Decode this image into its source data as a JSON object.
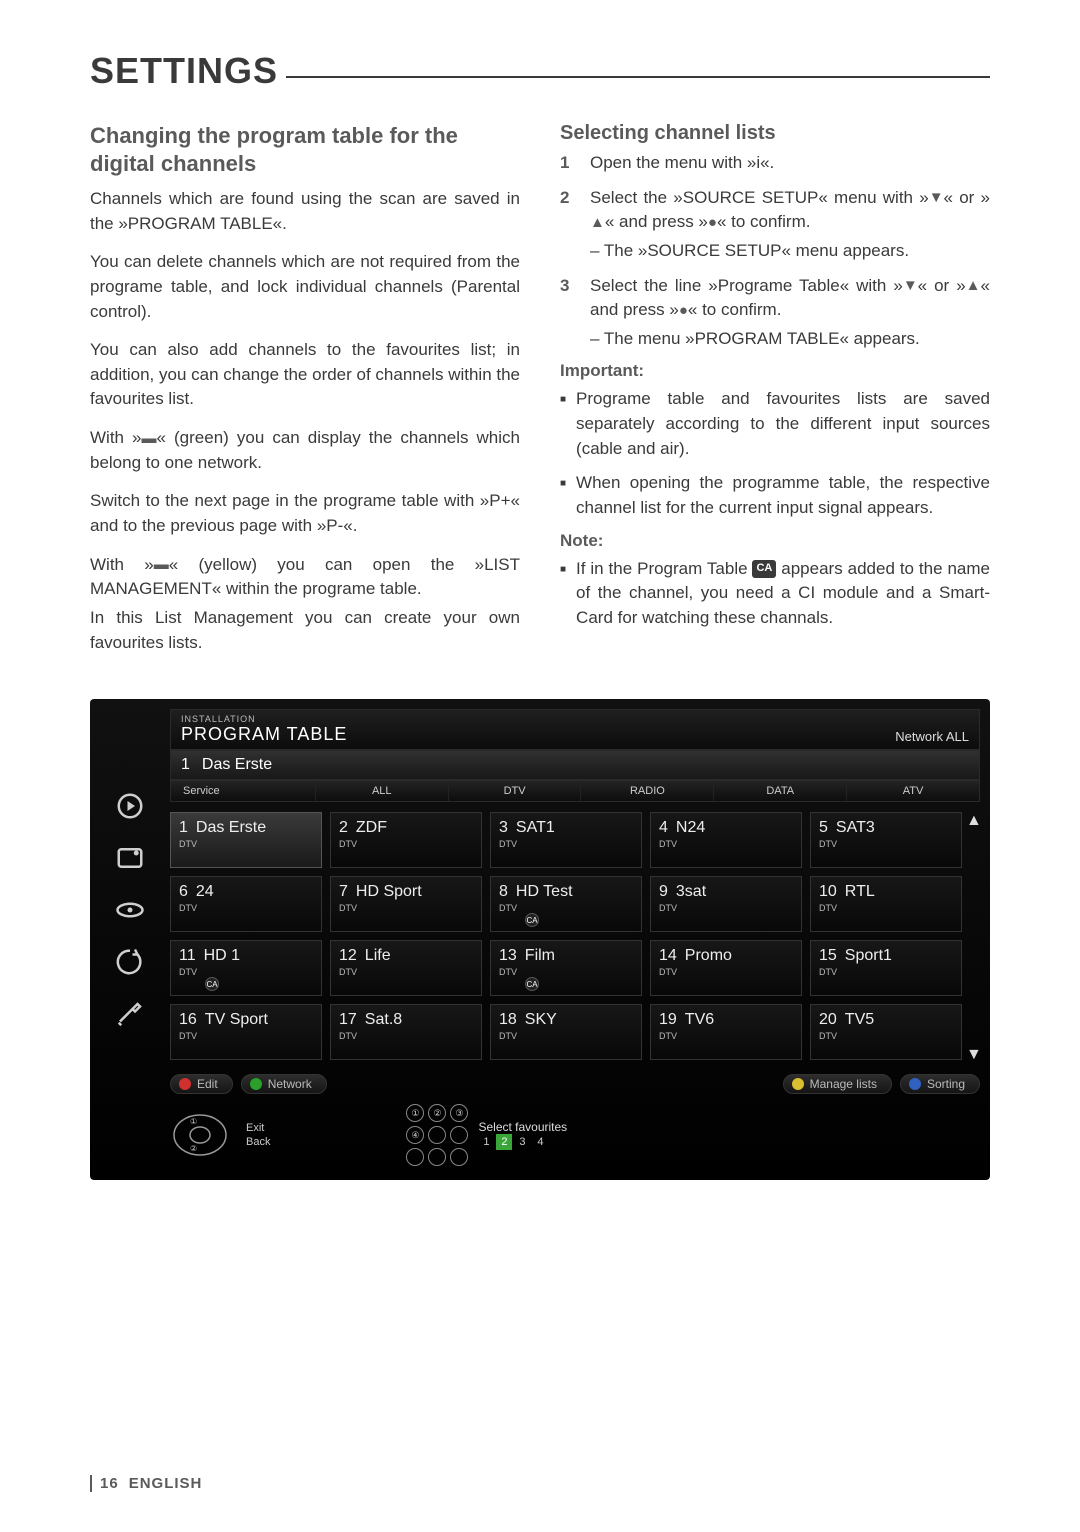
{
  "page": {
    "title": "SETTINGS",
    "footer_page": "16",
    "footer_lang": "ENGLISH"
  },
  "left": {
    "h2": "Changing the program table for the digital channels",
    "p1": "Channels which are found using the scan are saved in the »PROGRAM TABLE«.",
    "p2": "You can delete channels which are not required from the programe table, and lock individual channels (Parental control).",
    "p3": "You can also add channels to the favourites list; in addition, you can change the order of channels within the favourites list.",
    "p4a": "With »",
    "p4b": "« (green) you can display the channels which belong to one network.",
    "p5": "Switch to the next page in the programe table with »P+« and to the previous page with »P-«.",
    "p6a": "With »",
    "p6b": "« (yellow) you can open the »LIST MANAGEMENT« within the programe table.",
    "p7": "In this List Management you can create your own favourites lists."
  },
  "right": {
    "h3": "Selecting channel lists",
    "step1": "Open the menu with »i«.",
    "step2a": "Select the »SOURCE SETUP« menu with »",
    "step2b": "« or »",
    "step2c": "« and press »",
    "step2d": "« to confirm.",
    "sub2": "The »SOURCE SETUP« menu appears.",
    "step3a": "Select the line »Programe Table« with »",
    "step3b": "« or »",
    "step3c": "« and press »",
    "step3d": "« to confirm.",
    "sub3": "The menu »PROGRAM TABLE« appears.",
    "imp_label": "Important:",
    "imp1": "Programe table and favourites lists are saved separately according to the different input sources (cable and air).",
    "imp2": "When opening the programme table, the respective channel list for the current input signal appears.",
    "note_label": "Note:",
    "note1a": "If in the Program Table ",
    "note_badge": "CA",
    "note1b": " appears added to the name of the channel, you need a CI module and a Smart-Card for watching these channals."
  },
  "tv": {
    "inst": "INSTALLATION",
    "title": "PROGRAM TABLE",
    "network": "Network ALL",
    "sel_num": "1",
    "sel_name": "Das Erste",
    "tabs": [
      "Service",
      "ALL",
      "DTV",
      "RADIO",
      "DATA",
      "ATV"
    ],
    "channels": [
      {
        "n": "1",
        "name": "Das Erste",
        "ca": false,
        "sel": true
      },
      {
        "n": "2",
        "name": "ZDF",
        "ca": false
      },
      {
        "n": "3",
        "name": "SAT1",
        "ca": false
      },
      {
        "n": "4",
        "name": "N24",
        "ca": false
      },
      {
        "n": "5",
        "name": "SAT3",
        "ca": false
      },
      {
        "n": "6",
        "name": "24",
        "ca": false
      },
      {
        "n": "7",
        "name": "HD Sport",
        "ca": false
      },
      {
        "n": "8",
        "name": "HD Test",
        "ca": true
      },
      {
        "n": "9",
        "name": "3sat",
        "ca": false
      },
      {
        "n": "10",
        "name": "RTL",
        "ca": false
      },
      {
        "n": "11",
        "name": "HD 1",
        "ca": true
      },
      {
        "n": "12",
        "name": "Life",
        "ca": false
      },
      {
        "n": "13",
        "name": "Film",
        "ca": true
      },
      {
        "n": "14",
        "name": "Promo",
        "ca": false
      },
      {
        "n": "15",
        "name": "Sport1",
        "ca": false
      },
      {
        "n": "16",
        "name": "TV Sport",
        "ca": false
      },
      {
        "n": "17",
        "name": "Sat.8",
        "ca": false
      },
      {
        "n": "18",
        "name": "SKY",
        "ca": false
      },
      {
        "n": "19",
        "name": "TV6",
        "ca": false
      },
      {
        "n": "20",
        "name": "TV5",
        "ca": false
      }
    ],
    "dtv_label": "DTV",
    "pills": [
      {
        "color": "#d03030",
        "label": "Edit"
      },
      {
        "color": "#2aa02a",
        "label": "Network"
      },
      {
        "color": "#d8c030",
        "label": "Manage lists"
      },
      {
        "color": "#3060c0",
        "label": "Sorting"
      }
    ],
    "exit_label": "Exit",
    "back_label": "Back",
    "fav_label": "Select favourites",
    "fav_nums": [
      "1",
      "2",
      "3",
      "4"
    ]
  },
  "colors": {
    "text": "#3a3a3a",
    "muted": "#5a5a5a",
    "tv_bg": "#000000",
    "tv_cell": "#111111",
    "tv_border": "#2a2a2a"
  }
}
